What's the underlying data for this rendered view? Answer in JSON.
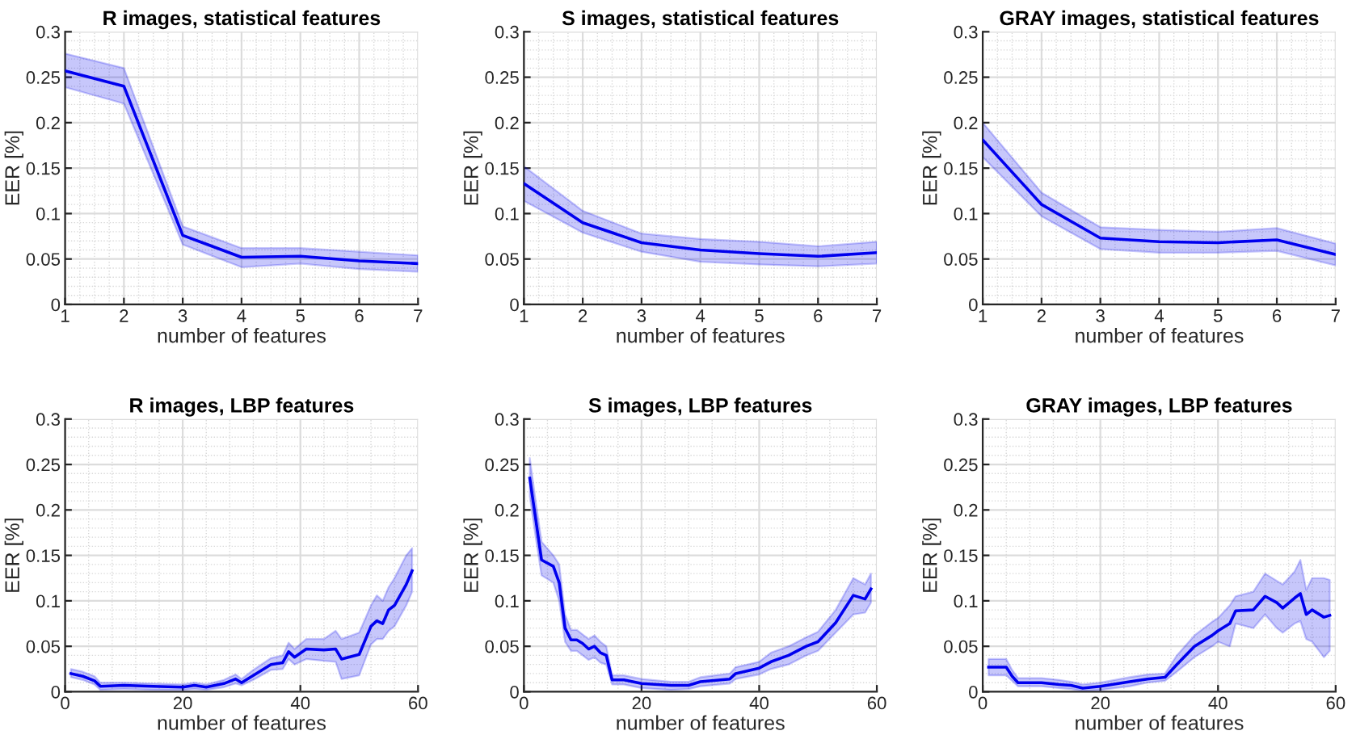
{
  "chart_data": [
    {
      "type": "line",
      "title": "R images, statistical features",
      "xlabel": "number of features",
      "ylabel": "EER [%]",
      "xlim": [
        1,
        7
      ],
      "ylim": [
        0,
        0.3
      ],
      "xticks": [
        1,
        2,
        3,
        4,
        5,
        6,
        7
      ],
      "yticks": [
        0,
        0.05,
        0.1,
        0.15,
        0.2,
        0.25,
        0.3
      ],
      "grid": true,
      "x": [
        1,
        2,
        3,
        4,
        5,
        6,
        7
      ],
      "series": [
        {
          "color": "#0000ee",
          "values": [
            0.257,
            0.24,
            0.076,
            0.052,
            0.053,
            0.048,
            0.045
          ],
          "lower": [
            0.239,
            0.221,
            0.066,
            0.041,
            0.045,
            0.039,
            0.036
          ],
          "upper": [
            0.276,
            0.26,
            0.086,
            0.062,
            0.062,
            0.058,
            0.054
          ]
        }
      ]
    },
    {
      "type": "line",
      "title": "S images, statistical features",
      "xlabel": "number of features",
      "ylabel": "EER [%]",
      "xlim": [
        1,
        7
      ],
      "ylim": [
        0,
        0.3
      ],
      "xticks": [
        1,
        2,
        3,
        4,
        5,
        6,
        7
      ],
      "yticks": [
        0,
        0.05,
        0.1,
        0.15,
        0.2,
        0.25,
        0.3
      ],
      "grid": true,
      "x": [
        1,
        2,
        3,
        4,
        5,
        6,
        7
      ],
      "series": [
        {
          "color": "#0000ee",
          "values": [
            0.133,
            0.09,
            0.068,
            0.06,
            0.056,
            0.053,
            0.057
          ],
          "lower": [
            0.114,
            0.079,
            0.058,
            0.047,
            0.044,
            0.042,
            0.045
          ],
          "upper": [
            0.152,
            0.103,
            0.078,
            0.072,
            0.069,
            0.064,
            0.069
          ]
        }
      ]
    },
    {
      "type": "line",
      "title": "GRAY images, statistical features",
      "xlabel": "number of features",
      "ylabel": "EER [%]",
      "xlim": [
        1,
        7
      ],
      "ylim": [
        0,
        0.3
      ],
      "xticks": [
        1,
        2,
        3,
        4,
        5,
        6,
        7
      ],
      "yticks": [
        0,
        0.05,
        0.1,
        0.15,
        0.2,
        0.25,
        0.3
      ],
      "grid": true,
      "x": [
        1,
        2,
        3,
        4,
        5,
        6,
        7
      ],
      "series": [
        {
          "color": "#0000ee",
          "values": [
            0.181,
            0.11,
            0.073,
            0.069,
            0.068,
            0.071,
            0.055
          ],
          "lower": [
            0.162,
            0.097,
            0.061,
            0.057,
            0.057,
            0.059,
            0.043
          ],
          "upper": [
            0.2,
            0.123,
            0.085,
            0.082,
            0.08,
            0.084,
            0.067
          ]
        }
      ]
    },
    {
      "type": "line",
      "title": "R images, LBP features",
      "xlabel": "number of features",
      "ylabel": "EER [%]",
      "xlim": [
        0,
        60
      ],
      "ylim": [
        0,
        0.3
      ],
      "xticks": [
        0,
        20,
        40,
        60
      ],
      "yticks": [
        0,
        0.05,
        0.1,
        0.15,
        0.2,
        0.25,
        0.3
      ],
      "grid": true,
      "x": [
        1,
        3,
        5,
        6,
        10,
        15,
        20,
        22,
        24,
        27,
        29,
        30,
        32,
        35,
        37,
        38,
        39,
        41,
        44,
        46,
        47,
        50,
        52,
        53,
        54,
        55,
        56,
        58,
        59
      ],
      "series": [
        {
          "color": "#0000ee",
          "values": [
            0.02,
            0.017,
            0.012,
            0.006,
            0.007,
            0.006,
            0.005,
            0.007,
            0.005,
            0.009,
            0.014,
            0.01,
            0.018,
            0.03,
            0.032,
            0.044,
            0.038,
            0.047,
            0.046,
            0.047,
            0.036,
            0.041,
            0.072,
            0.078,
            0.075,
            0.09,
            0.095,
            0.118,
            0.133
          ],
          "lower": [
            0.016,
            0.013,
            0.008,
            0.002,
            0.003,
            0.002,
            0.002,
            0.003,
            0.002,
            0.005,
            0.009,
            0.007,
            0.013,
            0.024,
            0.025,
            0.036,
            0.03,
            0.036,
            0.034,
            0.033,
            0.014,
            0.018,
            0.052,
            0.058,
            0.058,
            0.067,
            0.072,
            0.095,
            0.11
          ],
          "upper": [
            0.025,
            0.022,
            0.017,
            0.01,
            0.01,
            0.009,
            0.008,
            0.01,
            0.008,
            0.013,
            0.019,
            0.014,
            0.024,
            0.037,
            0.04,
            0.054,
            0.047,
            0.058,
            0.058,
            0.067,
            0.058,
            0.065,
            0.095,
            0.106,
            0.1,
            0.115,
            0.125,
            0.15,
            0.158
          ]
        }
      ]
    },
    {
      "type": "line",
      "title": "S images, LBP features",
      "xlabel": "number of features",
      "ylabel": "EER [%]",
      "xlim": [
        0,
        60
      ],
      "ylim": [
        0,
        0.3
      ],
      "xticks": [
        0,
        20,
        40,
        60
      ],
      "yticks": [
        0,
        0.05,
        0.1,
        0.15,
        0.2,
        0.25,
        0.3
      ],
      "grid": true,
      "x": [
        1,
        2,
        3,
        5,
        6,
        7,
        8,
        9,
        10,
        11,
        12,
        13,
        14,
        15,
        17,
        20,
        25,
        28,
        30,
        35,
        36,
        40,
        42,
        45,
        48,
        50,
        53,
        56,
        58,
        59
      ],
      "series": [
        {
          "color": "#0000ee",
          "values": [
            0.235,
            0.19,
            0.145,
            0.138,
            0.12,
            0.07,
            0.057,
            0.057,
            0.053,
            0.047,
            0.05,
            0.043,
            0.04,
            0.013,
            0.013,
            0.009,
            0.007,
            0.007,
            0.011,
            0.014,
            0.02,
            0.026,
            0.033,
            0.04,
            0.05,
            0.055,
            0.076,
            0.106,
            0.102,
            0.113
          ],
          "lower": [
            0.215,
            0.17,
            0.128,
            0.12,
            0.1,
            0.055,
            0.045,
            0.045,
            0.04,
            0.035,
            0.038,
            0.032,
            0.03,
            0.008,
            0.008,
            0.004,
            0.002,
            0.003,
            0.006,
            0.009,
            0.014,
            0.019,
            0.025,
            0.03,
            0.04,
            0.045,
            0.065,
            0.085,
            0.087,
            0.098
          ],
          "upper": [
            0.257,
            0.21,
            0.165,
            0.15,
            0.14,
            0.085,
            0.068,
            0.068,
            0.063,
            0.058,
            0.062,
            0.055,
            0.05,
            0.018,
            0.018,
            0.014,
            0.011,
            0.011,
            0.016,
            0.02,
            0.027,
            0.033,
            0.043,
            0.05,
            0.06,
            0.066,
            0.09,
            0.125,
            0.118,
            0.13
          ]
        }
      ]
    },
    {
      "type": "line",
      "title": "GRAY images, LBP features",
      "xlabel": "number of features",
      "ylabel": "EER [%]",
      "xlim": [
        0,
        60
      ],
      "ylim": [
        0,
        0.3
      ],
      "xticks": [
        0,
        20,
        40,
        60
      ],
      "yticks": [
        0,
        0.05,
        0.1,
        0.15,
        0.2,
        0.25,
        0.3
      ],
      "grid": true,
      "x": [
        1,
        4,
        5,
        6,
        10,
        13,
        15,
        17,
        20,
        25,
        28,
        31,
        33,
        36,
        39,
        40,
        42,
        43,
        46,
        48,
        50,
        51,
        53,
        54,
        55,
        56,
        58,
        59
      ],
      "series": [
        {
          "color": "#0000ee",
          "values": [
            0.027,
            0.027,
            0.017,
            0.01,
            0.01,
            0.008,
            0.007,
            0.004,
            0.006,
            0.011,
            0.014,
            0.016,
            0.03,
            0.05,
            0.062,
            0.067,
            0.075,
            0.089,
            0.09,
            0.105,
            0.098,
            0.092,
            0.103,
            0.108,
            0.085,
            0.09,
            0.082,
            0.084
          ],
          "lower": [
            0.018,
            0.018,
            0.012,
            0.006,
            0.006,
            0.004,
            0.003,
            0.001,
            0.002,
            0.006,
            0.01,
            0.012,
            0.022,
            0.038,
            0.05,
            0.055,
            0.05,
            0.075,
            0.07,
            0.085,
            0.07,
            0.065,
            0.075,
            0.078,
            0.058,
            0.055,
            0.038,
            0.045
          ],
          "upper": [
            0.036,
            0.036,
            0.024,
            0.015,
            0.015,
            0.013,
            0.011,
            0.008,
            0.01,
            0.016,
            0.019,
            0.02,
            0.04,
            0.062,
            0.077,
            0.081,
            0.095,
            0.105,
            0.11,
            0.13,
            0.122,
            0.118,
            0.132,
            0.145,
            0.112,
            0.125,
            0.125,
            0.123
          ]
        }
      ]
    }
  ]
}
